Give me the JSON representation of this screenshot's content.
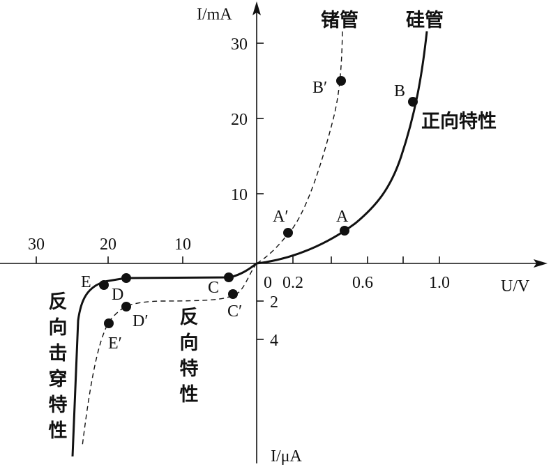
{
  "axes": {
    "y_top_label": "I/mA",
    "y_bottom_label": "I/μA",
    "x_label": "U/V",
    "origin": "0"
  },
  "ticks": {
    "forward_current": [
      "10",
      "20",
      "30"
    ],
    "reverse_current": [
      "2",
      "4"
    ],
    "forward_voltage": [
      "0.2",
      "0.6",
      "1.0"
    ],
    "reverse_voltage": [
      "10",
      "20",
      "30"
    ]
  },
  "curves": {
    "germanium": "锗管",
    "silicon": "硅管",
    "forward": "正向特性",
    "reverse": "反向特性",
    "breakdown": "反向击穿特性"
  },
  "points": {
    "A": "A",
    "A_prime": "A′",
    "B": "B",
    "B_prime": "B′",
    "C": "C",
    "C_prime": "C′",
    "D": "D",
    "D_prime": "D′",
    "E": "E",
    "E_prime": "E′"
  }
}
